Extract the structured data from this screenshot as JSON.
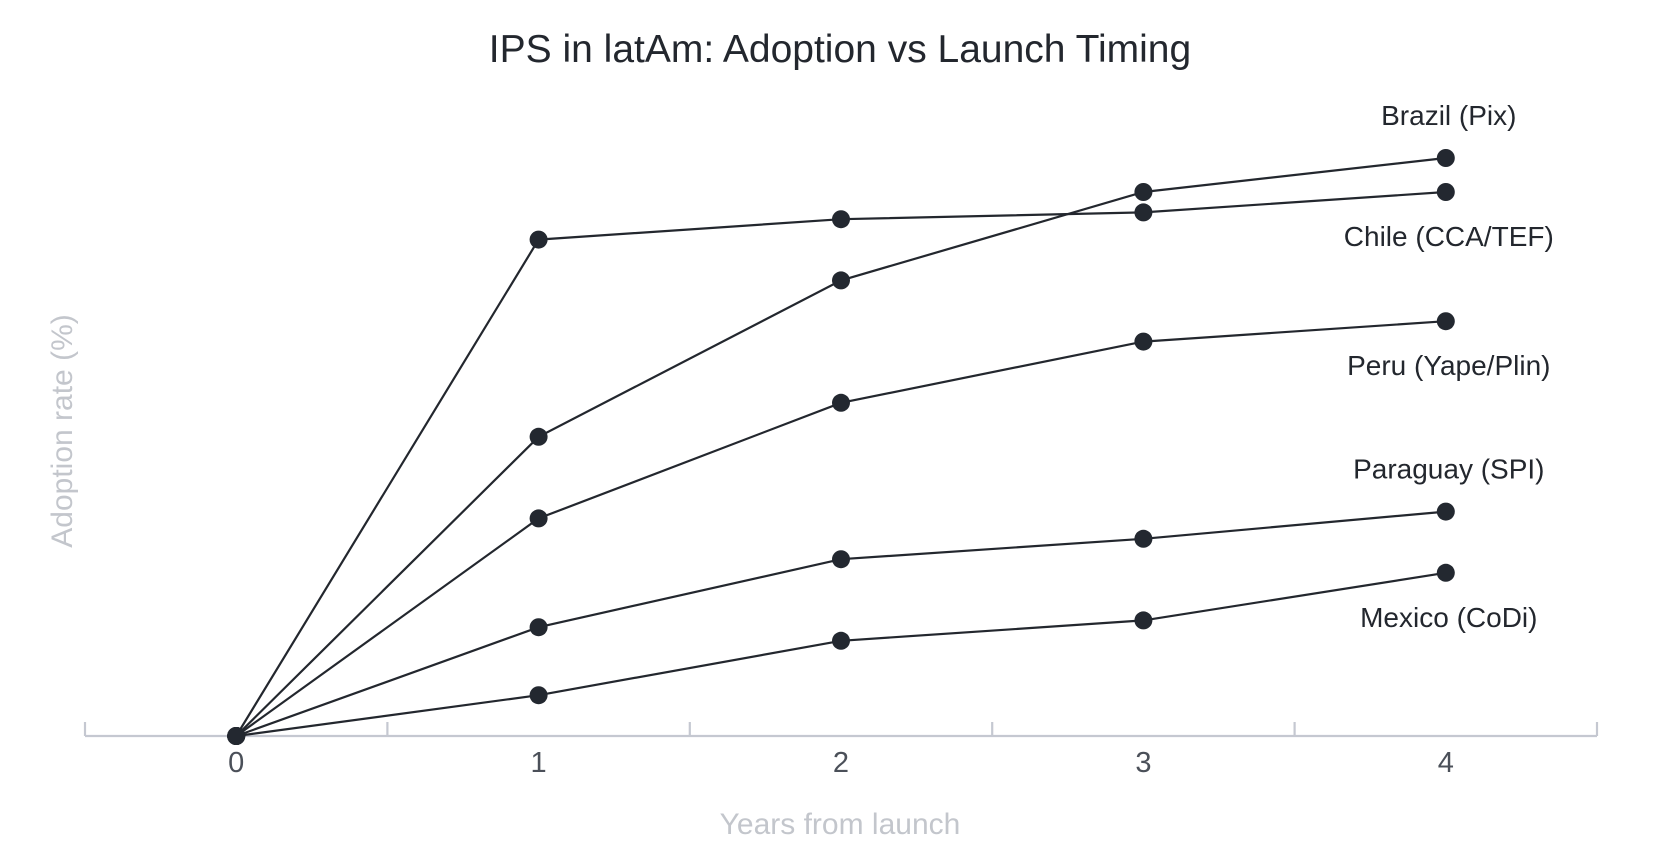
{
  "chart_data": {
    "type": "line",
    "title": "IPS in latAm: Adoption vs Launch Timing",
    "xlabel": "Years from launch",
    "ylabel": "Adoption rate (%)",
    "x": [
      0,
      1,
      2,
      3,
      4
    ],
    "x_tick_labels": [
      "0",
      "1",
      "2",
      "3",
      "4"
    ],
    "xlim": [
      -0.5,
      4.5
    ],
    "ylim": [
      0,
      90
    ],
    "y_ticks_visible": false,
    "grid": false,
    "legend": "direct labels at line ends (right side)",
    "series": [
      {
        "name": "Brazil (Pix)",
        "values": [
          0,
          44,
          67,
          80,
          85
        ]
      },
      {
        "name": "Chile (CCA/TEF)",
        "values": [
          0,
          73,
          76,
          77,
          80
        ]
      },
      {
        "name": "Peru (Yape/Plin)",
        "values": [
          0,
          32,
          49,
          58,
          61
        ]
      },
      {
        "name": "Paraguay (SPI)",
        "values": [
          0,
          16,
          26,
          29,
          33
        ]
      },
      {
        "name": "Mexico (CoDi)",
        "values": [
          0,
          6,
          14,
          17,
          24
        ]
      }
    ],
    "label_positions": [
      {
        "name": "Brazil (Pix)",
        "placement": "above"
      },
      {
        "name": "Chile (CCA/TEF)",
        "placement": "below"
      },
      {
        "name": "Peru (Yape/Plin)",
        "placement": "below"
      },
      {
        "name": "Paraguay (SPI)",
        "placement": "above"
      },
      {
        "name": "Mexico (CoDi)",
        "placement": "below"
      }
    ]
  },
  "colors": {
    "line": "#23272e",
    "dot": "#232830",
    "axis": "#c5c8d1",
    "axis_title": "#c3c6cc",
    "tick_label": "#4b5059",
    "title": "#23272e",
    "background": "#ffffff"
  }
}
